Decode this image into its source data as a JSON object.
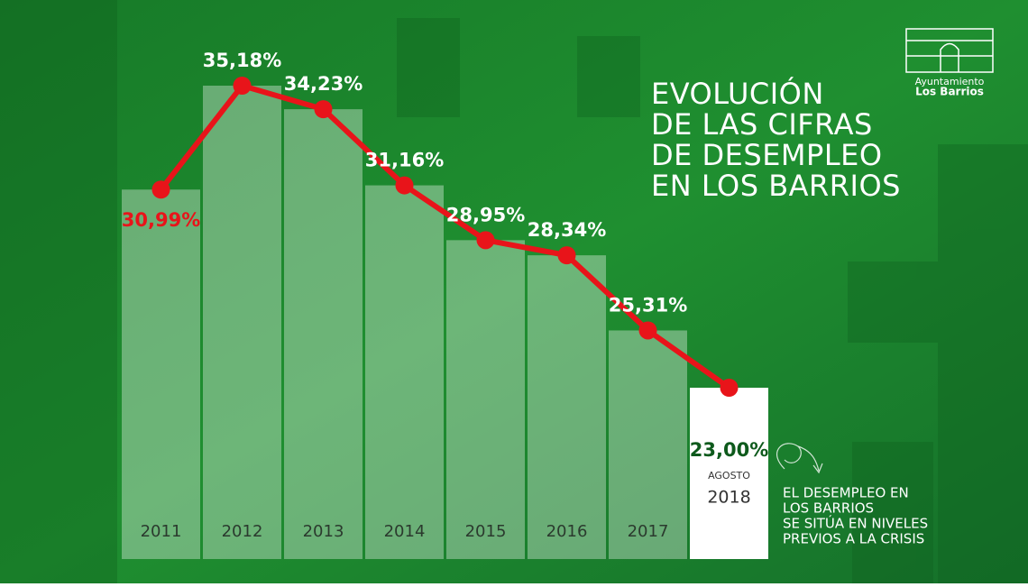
{
  "chart_data": {
    "type": "bar-line",
    "title_lines": [
      "EVOLUCIÓN",
      "DE LAS CIFRAS",
      "DE DESEMPLEO",
      "EN LOS BARRIOS"
    ],
    "categories": [
      "2011",
      "2012",
      "2013",
      "2014",
      "2015",
      "2016",
      "2017",
      "2018"
    ],
    "last_category_month": "AGOSTO",
    "values": [
      30.99,
      35.18,
      34.23,
      31.16,
      28.95,
      28.34,
      25.31,
      23.0
    ],
    "value_labels": [
      "30,99%",
      "35,18%",
      "34,23%",
      "31,16%",
      "28,95%",
      "28,34%",
      "25,31%",
      "23,00%"
    ],
    "bar_color": "rgba(255,255,255,0.35)",
    "highlight_bar_color": "#ffffff",
    "line_color": "#e8141a",
    "annotation_lines": [
      "EL DESEMPLEO EN",
      "LOS BARRIOS",
      "SE SITÚA EN NIVELES",
      "PREVIOS A LA CRISIS"
    ],
    "logo": {
      "line1": "Ayuntamiento",
      "line2": "Los Barrios"
    }
  }
}
